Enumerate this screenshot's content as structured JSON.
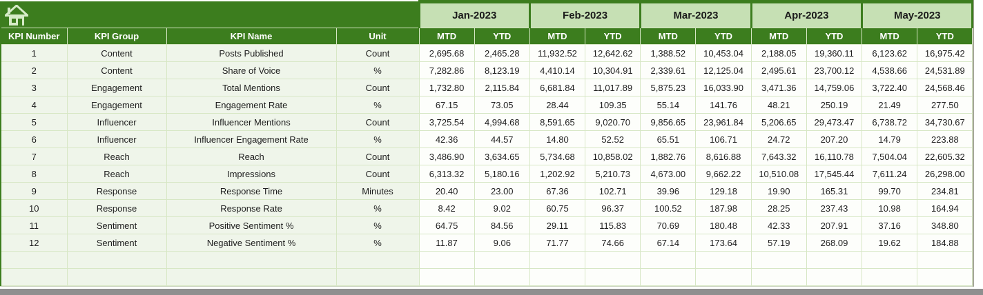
{
  "banner": {
    "home_icon": "home-icon"
  },
  "table": {
    "months": [
      "Jan-2023",
      "Feb-2023",
      "Mar-2023",
      "Apr-2023",
      "May-2023"
    ],
    "sub_headers": [
      "MTD",
      "YTD"
    ],
    "left_headers": [
      "KPI Number",
      "KPI Group",
      "KPI Name",
      "Unit"
    ],
    "rows": [
      {
        "number": "1",
        "group": "Content",
        "name": "Posts Published",
        "unit": "Count",
        "values": [
          "2,695.68",
          "2,465.28",
          "11,932.52",
          "12,642.62",
          "1,388.52",
          "10,453.04",
          "2,188.05",
          "19,360.11",
          "6,123.62",
          "16,975.42"
        ]
      },
      {
        "number": "2",
        "group": "Content",
        "name": "Share of Voice",
        "unit": "%",
        "values": [
          "7,282.86",
          "8,123.19",
          "4,410.14",
          "10,304.91",
          "2,339.61",
          "12,125.04",
          "2,495.61",
          "23,700.12",
          "4,538.66",
          "24,531.89"
        ]
      },
      {
        "number": "3",
        "group": "Engagement",
        "name": "Total Mentions",
        "unit": "Count",
        "values": [
          "1,732.80",
          "2,115.84",
          "6,681.84",
          "11,017.89",
          "5,875.23",
          "16,033.90",
          "3,471.36",
          "14,759.06",
          "3,722.40",
          "24,568.46"
        ]
      },
      {
        "number": "4",
        "group": "Engagement",
        "name": "Engagement Rate",
        "unit": "%",
        "values": [
          "67.15",
          "73.05",
          "28.44",
          "109.35",
          "55.14",
          "141.76",
          "48.21",
          "250.19",
          "21.49",
          "277.50"
        ]
      },
      {
        "number": "5",
        "group": "Influencer",
        "name": "Influencer Mentions",
        "unit": "Count",
        "values": [
          "3,725.54",
          "4,994.68",
          "8,591.65",
          "9,020.70",
          "9,856.65",
          "23,961.84",
          "5,206.65",
          "29,473.47",
          "6,738.72",
          "34,730.67"
        ]
      },
      {
        "number": "6",
        "group": "Influencer",
        "name": "Influencer Engagement Rate",
        "unit": "%",
        "values": [
          "42.36",
          "44.57",
          "14.80",
          "52.52",
          "65.51",
          "106.71",
          "24.72",
          "207.20",
          "14.79",
          "223.88"
        ]
      },
      {
        "number": "7",
        "group": "Reach",
        "name": "Reach",
        "unit": "Count",
        "values": [
          "3,486.90",
          "3,634.65",
          "5,734.68",
          "10,858.02",
          "1,882.76",
          "8,616.88",
          "7,643.32",
          "16,110.78",
          "7,504.04",
          "22,605.32"
        ]
      },
      {
        "number": "8",
        "group": "Reach",
        "name": "Impressions",
        "unit": "Count",
        "values": [
          "6,313.32",
          "5,180.16",
          "1,202.92",
          "5,210.73",
          "4,673.00",
          "9,662.22",
          "10,510.08",
          "17,545.44",
          "7,611.24",
          "26,298.00"
        ]
      },
      {
        "number": "9",
        "group": "Response",
        "name": "Response Time",
        "unit": "Minutes",
        "values": [
          "20.40",
          "23.00",
          "67.36",
          "102.71",
          "39.96",
          "129.18",
          "19.90",
          "165.31",
          "99.70",
          "234.81"
        ]
      },
      {
        "number": "10",
        "group": "Response",
        "name": "Response Rate",
        "unit": "%",
        "values": [
          "8.42",
          "9.02",
          "60.75",
          "96.37",
          "100.52",
          "187.98",
          "28.25",
          "237.43",
          "10.98",
          "164.94"
        ]
      },
      {
        "number": "11",
        "group": "Sentiment",
        "name": "Positive Sentiment %",
        "unit": "%",
        "values": [
          "64.75",
          "84.56",
          "29.11",
          "115.83",
          "70.69",
          "180.48",
          "42.33",
          "207.91",
          "37.16",
          "348.80"
        ]
      },
      {
        "number": "12",
        "group": "Sentiment",
        "name": "Negative Sentiment %",
        "unit": "%",
        "values": [
          "11.87",
          "9.06",
          "71.77",
          "74.66",
          "67.14",
          "173.64",
          "57.19",
          "268.09",
          "19.62",
          "184.88"
        ]
      }
    ],
    "empty_rows": 2
  },
  "colors": {
    "header_green": "#3c7d1e",
    "month_green": "#c6e0b4",
    "left_cell_bg": "#eff5ea",
    "data_cell_bg": "#fdfefb",
    "gridline": "#d7e7c5",
    "home_icon_green": "#d6ebc8",
    "scrollbar_gray": "#8f8f8f"
  }
}
